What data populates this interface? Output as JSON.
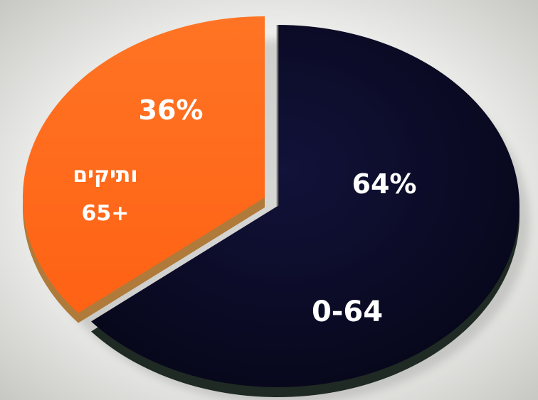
{
  "chart_data": {
    "type": "pie",
    "title": "",
    "slices": [
      {
        "name": "0-64",
        "value": 64,
        "value_label": "64%",
        "category_label": "0-64",
        "color": "#0b0a2c"
      },
      {
        "name": "ותיקים 65+",
        "value": 36,
        "value_label": "36%",
        "category_label_lines": [
          "ותיקים",
          "65+"
        ],
        "color": "#ff6a1a"
      }
    ],
    "exploded_slice": "ותיקים 65+",
    "style": "3d-tilted",
    "legend": "none"
  },
  "colors": {
    "background_light": "#f7f7f5",
    "background_shadow": "#c9c9c6",
    "dark_slice_depth": "#1f2a24",
    "orange_slice_depth": "#b07a3a"
  }
}
